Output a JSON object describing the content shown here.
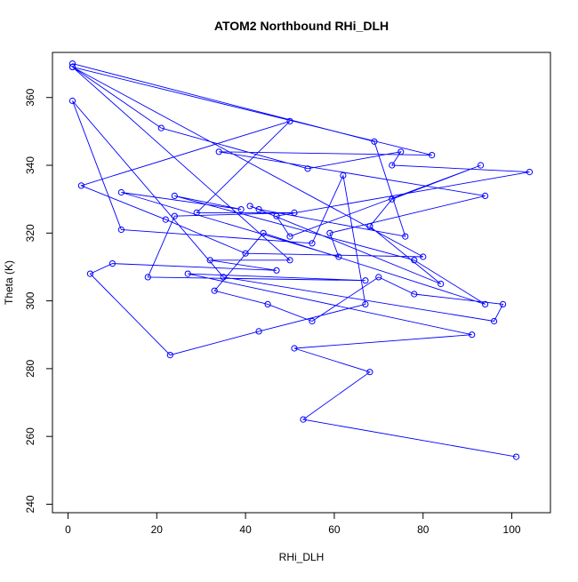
{
  "chart_data": {
    "type": "line",
    "title": "ATOM2 Northbound RHi_DLH",
    "xlabel": "RHi_DLH",
    "ylabel": "Theta (K)",
    "xlim": [
      -3.5,
      108.7
    ],
    "ylim": [
      237.5,
      373.3
    ],
    "x_ticks": [
      0,
      20,
      40,
      60,
      80,
      100
    ],
    "y_ticks": [
      240,
      260,
      280,
      300,
      320,
      340,
      360
    ],
    "marker": "open-circle",
    "series": [
      {
        "color": "#0000ff",
        "x": [
          1,
          69,
          76,
          43,
          41,
          84,
          68,
          73,
          93,
          50,
          47,
          104,
          73,
          75,
          54,
          21,
          1,
          82,
          34,
          94,
          59,
          61,
          12,
          39,
          24,
          78,
          94,
          44,
          33,
          45,
          55,
          70,
          78,
          98,
          96,
          35,
          1,
          12,
          55,
          62,
          67,
          43,
          23,
          5,
          10,
          47,
          32,
          50,
          1,
          80,
          40,
          22,
          3,
          50,
          29,
          51,
          24,
          18,
          67,
          27,
          91,
          51,
          68,
          53,
          101
        ],
        "y": [
          370,
          347,
          319,
          327,
          328,
          305,
          322,
          330,
          340,
          319,
          325,
          338,
          340,
          344,
          339,
          351,
          369,
          343,
          344,
          331,
          320,
          313,
          332,
          327,
          331,
          312,
          299,
          320,
          303,
          299,
          294,
          307,
          302,
          299,
          294,
          307,
          359,
          321,
          317,
          337,
          299,
          291,
          284,
          308,
          311,
          309,
          312,
          312,
          369,
          313,
          314,
          324,
          334,
          353,
          326,
          326,
          325,
          307,
          306,
          308,
          290,
          286,
          279,
          265,
          254
        ]
      }
    ]
  }
}
